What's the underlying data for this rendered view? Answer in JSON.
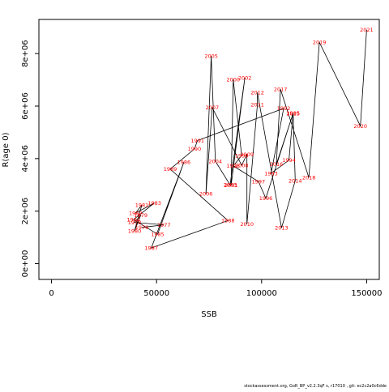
{
  "chart_data": {
    "type": "line",
    "xlabel": "SSB",
    "ylabel": "R(age 0)",
    "xlim": [
      -6000,
      156000
    ],
    "ylim": [
      -600000,
      9300000
    ],
    "xticks": [
      0,
      50000,
      100000,
      150000
    ],
    "xtick_labels": [
      "0",
      "50000",
      "100000",
      "150000"
    ],
    "yticks": [
      0,
      2000000,
      4000000,
      6000000,
      8000000
    ],
    "ytick_labels": [
      "0e+00",
      "2e+06",
      "4e+06",
      "6e+06",
      "8e+06"
    ],
    "grid": false,
    "points": [
      {
        "year": "1976",
        "x": 43000,
        "y": 1380000
      },
      {
        "year": "1977",
        "x": 53500,
        "y": 1480000
      },
      {
        "year": "1978",
        "x": 39500,
        "y": 1570000
      },
      {
        "year": "1979",
        "x": 42500,
        "y": 1850000
      },
      {
        "year": "1980",
        "x": 39500,
        "y": 1250000
      },
      {
        "year": "1981",
        "x": 43000,
        "y": 2230000
      },
      {
        "year": "1982",
        "x": 40000,
        "y": 1930000
      },
      {
        "year": "1983",
        "x": 49000,
        "y": 2310000
      },
      {
        "year": "1984",
        "x": 39000,
        "y": 1680000
      },
      {
        "year": "1985",
        "x": 50500,
        "y": 1120000
      },
      {
        "year": "1986",
        "x": 63000,
        "y": 3860000
      },
      {
        "year": "1987",
        "x": 47500,
        "y": 600000
      },
      {
        "year": "1988",
        "x": 84000,
        "y": 1640000
      },
      {
        "year": "1989",
        "x": 56500,
        "y": 3600000
      },
      {
        "year": "1990",
        "x": 68000,
        "y": 4370000
      },
      {
        "year": "1991",
        "x": 69500,
        "y": 4690000
      },
      {
        "year": "1992",
        "x": 110500,
        "y": 5910000
      },
      {
        "year": "1993",
        "x": 104500,
        "y": 3440000
      },
      {
        "year": "1994",
        "x": 113000,
        "y": 3940000
      },
      {
        "year": "1995",
        "x": 115000,
        "y": 5730000
      },
      {
        "year": "1996",
        "x": 102000,
        "y": 2490000
      },
      {
        "year": "1997",
        "x": 98500,
        "y": 3130000
      },
      {
        "year": "1998",
        "x": 86500,
        "y": 3720000
      },
      {
        "year": "1999",
        "x": 90500,
        "y": 4120000
      },
      {
        "year": "2000",
        "x": 86500,
        "y": 7010000
      },
      {
        "year": "2001",
        "x": 85500,
        "y": 2990000
      },
      {
        "year": "2002",
        "x": 92000,
        "y": 7070000
      },
      {
        "year": "2003",
        "x": 85000,
        "y": 3000000
      },
      {
        "year": "2004",
        "x": 78000,
        "y": 3900000
      },
      {
        "year": "2005",
        "x": 76000,
        "y": 7900000
      },
      {
        "year": "2006",
        "x": 73500,
        "y": 2660000
      },
      {
        "year": "2007",
        "x": 76500,
        "y": 5940000
      },
      {
        "year": "2008",
        "x": 90500,
        "y": 3750000
      },
      {
        "year": "2009",
        "x": 93000,
        "y": 4160000
      },
      {
        "year": "2010",
        "x": 93000,
        "y": 1500000
      },
      {
        "year": "2011",
        "x": 98000,
        "y": 6050000
      },
      {
        "year": "2012",
        "x": 98000,
        "y": 6520000
      },
      {
        "year": "2013",
        "x": 109500,
        "y": 1360000
      },
      {
        "year": "2014",
        "x": 116000,
        "y": 3160000
      },
      {
        "year": "2015",
        "x": 115000,
        "y": 5720000
      },
      {
        "year": "2016",
        "x": 107000,
        "y": 3790000
      },
      {
        "year": "2017",
        "x": 109000,
        "y": 6640000
      },
      {
        "year": "2018",
        "x": 122500,
        "y": 3280000
      },
      {
        "year": "2019",
        "x": 127500,
        "y": 8430000
      },
      {
        "year": "2020",
        "x": 147000,
        "y": 5240000
      },
      {
        "year": "2021",
        "x": 150000,
        "y": 8910000
      }
    ]
  },
  "footer": {
    "text": "stockassessment.org, GoR_BP_v2.2.3qF s, r17010 , git: ec2c2a0c6dde"
  }
}
